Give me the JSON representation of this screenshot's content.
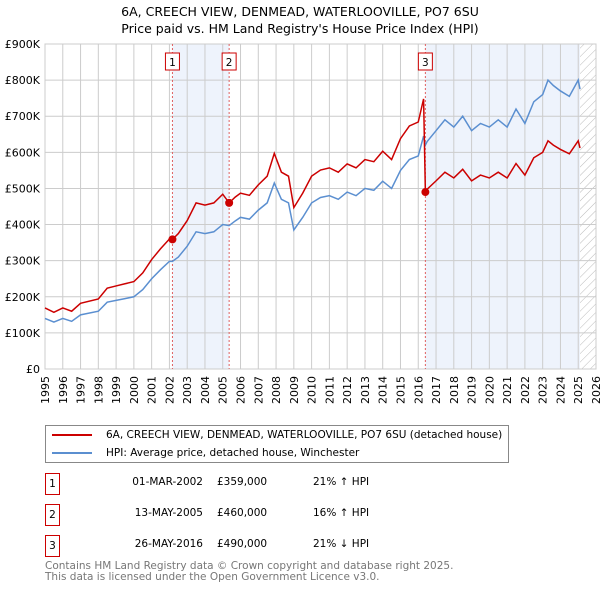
{
  "chart_data": {
    "type": "line",
    "title": "6A, CREECH VIEW, DENMEAD, WATERLOOVILLE, PO7 6SU",
    "subtitle": "Price paid vs. HM Land Registry's House Price Index (HPI)",
    "xlim": [
      1995,
      2026
    ],
    "ylim": [
      0,
      900000
    ],
    "y_ticks": [
      "£0",
      "£100K",
      "£200K",
      "£300K",
      "£400K",
      "£500K",
      "£600K",
      "£700K",
      "£800K",
      "£900K"
    ],
    "x_ticks": [
      "1995",
      "1996",
      "1997",
      "1998",
      "1999",
      "2000",
      "2001",
      "2002",
      "2003",
      "2004",
      "2005",
      "2006",
      "2007",
      "2008",
      "2009",
      "2010",
      "2011",
      "2012",
      "2013",
      "2014",
      "2015",
      "2016",
      "2017",
      "2018",
      "2019",
      "2020",
      "2021",
      "2022",
      "2023",
      "2024",
      "2025",
      "2026"
    ],
    "x": [
      1995,
      1995.5,
      1996,
      1996.5,
      1997,
      1998,
      1998.5,
      1999,
      1999.5,
      2000,
      2000.5,
      2001,
      2001.5,
      2002,
      2002.17,
      2002.5,
      2003,
      2003.5,
      2004,
      2004.5,
      2005,
      2005.36,
      2005.7,
      2006,
      2006.5,
      2007,
      2007.5,
      2007.9,
      2008.3,
      2008.7,
      2009,
      2009.5,
      2010,
      2010.5,
      2011,
      2011.5,
      2012,
      2012.5,
      2013,
      2013.5,
      2014,
      2014.5,
      2015,
      2015.5,
      2016,
      2016.3,
      2016.4,
      2016.5,
      2017,
      2017.5,
      2018,
      2018.5,
      2019,
      2019.5,
      2020,
      2020.5,
      2021,
      2021.5,
      2022,
      2022.5,
      2023,
      2023.3,
      2023.6,
      2024,
      2024.5,
      2025,
      2025.1
    ],
    "series": [
      {
        "name": "6A, CREECH VIEW, DENMEAD, WATERLOOVILLE, PO7 6SU (detached house)",
        "color": "#cc0000",
        "values": [
          169,
          157,
          169,
          160,
          182,
          194,
          224,
          230,
          236,
          242,
          266,
          303,
          333,
          360,
          359,
          375,
          411,
          460,
          454,
          460,
          484,
          460,
          476,
          487,
          481,
          510,
          534,
          597,
          545,
          534,
          447,
          487,
          534,
          551,
          557,
          545,
          568,
          557,
          580,
          574,
          603,
          580,
          638,
          673,
          684,
          748,
          490,
          498,
          521,
          545,
          529,
          553,
          521,
          537,
          529,
          545,
          529,
          569,
          537,
          585,
          600,
          632,
          620,
          608,
          596,
          632,
          612
        ]
      },
      {
        "name": "HPI: Average price, detached house, Winchester",
        "color": "#5b8fd0",
        "values": [
          140,
          130,
          140,
          132,
          150,
          160,
          185,
          190,
          195,
          200,
          220,
          250,
          275,
          298,
          298,
          310,
          340,
          380,
          375,
          380,
          400,
          397,
          410,
          420,
          415,
          440,
          460,
          515,
          470,
          460,
          385,
          420,
          460,
          475,
          480,
          470,
          490,
          480,
          500,
          495,
          520,
          500,
          550,
          580,
          590,
          645,
          620,
          630,
          660,
          690,
          670,
          700,
          660,
          680,
          670,
          690,
          670,
          720,
          680,
          740,
          760,
          800,
          785,
          770,
          755,
          800,
          775
        ]
      }
    ],
    "value_unit": "£K",
    "sales": [
      {
        "num": "1",
        "x": 2002.17,
        "value": 359,
        "date": "01-MAR-2002",
        "price": "£359,000",
        "hpi": "21% ↑ HPI"
      },
      {
        "num": "2",
        "x": 2005.36,
        "value": 460,
        "date": "13-MAY-2005",
        "price": "£460,000",
        "hpi": "16% ↑ HPI"
      },
      {
        "num": "3",
        "x": 2016.4,
        "value": 490,
        "date": "26-MAY-2016",
        "price": "£490,000",
        "hpi": "21% ↓ HPI"
      }
    ],
    "shaded": [
      [
        2002.17,
        2005.36
      ],
      [
        2016.4,
        2025.1
      ]
    ],
    "hatch_from": 2025.1
  },
  "footer": {
    "line1": "Contains HM Land Registry data © Crown copyright and database right 2025.",
    "line2": "This data is licensed under the Open Government Licence v3.0."
  }
}
